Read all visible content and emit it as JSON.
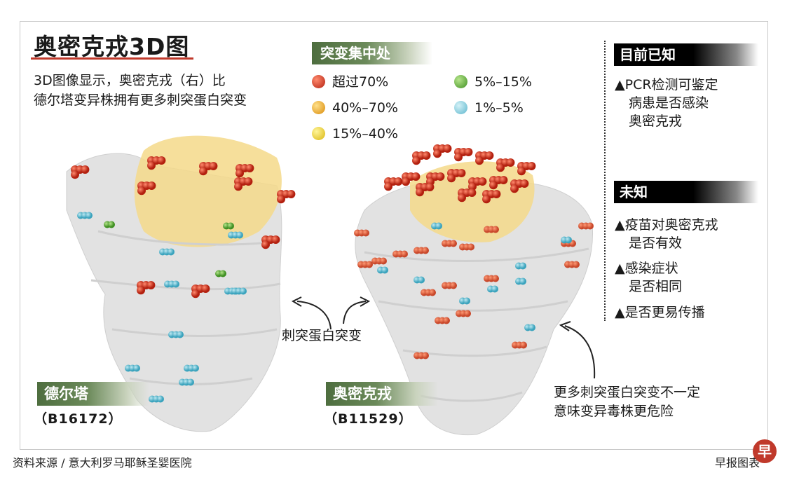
{
  "title": "奥密克戎3D图",
  "subtitle": [
    "3D图像显示，奥密克戎（右）比",
    "德尔塔变异株拥有更多刺突蛋白突变"
  ],
  "legend": {
    "heading": "突变集中处",
    "items": [
      {
        "label": "超过70%",
        "color": "#d32f1e"
      },
      {
        "label": "40%–70%",
        "color": "#f0a81c"
      },
      {
        "label": "15%–40%",
        "color": "#f4d21a"
      },
      {
        "label": "5%–15%",
        "color": "#7cc04a"
      },
      {
        "label": "1%–5%",
        "color": "#8ed0e0"
      }
    ]
  },
  "known": {
    "heading": "目前已知",
    "bullets": [
      [
        "▲PCR检测可鉴定",
        "病患是否感染",
        "奥密克戎"
      ]
    ]
  },
  "unknown": {
    "heading": "未知",
    "bullets": [
      [
        "▲疫苗对奥密克戎",
        "是否有效"
      ],
      [
        "▲感染症状",
        "是否相同"
      ],
      [
        "▲是否更易传播"
      ]
    ]
  },
  "molecules": {
    "left": {
      "name": "德尔塔",
      "code": "（B16172）"
    },
    "right": {
      "name": "奥密克戎",
      "code": "（B11529）"
    }
  },
  "callouts": {
    "center": "刺突蛋白突变",
    "bottom_right": [
      "更多刺突蛋白突变不一定",
      "意味变异毒株更危险"
    ]
  },
  "source": "资料来源 / 意大利罗马耶稣圣婴医院",
  "credit": "早报图表",
  "logo_char": "早"
}
